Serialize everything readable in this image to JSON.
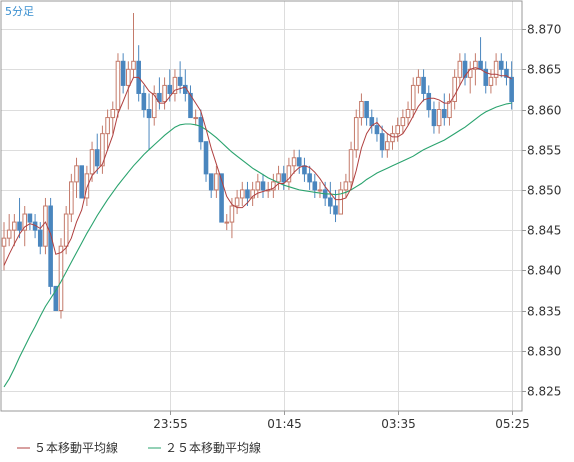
{
  "timeframe_label": "5分足",
  "colors": {
    "up": "#c47a6a",
    "down": "#4a86be",
    "ma5": "#b04040",
    "ma25": "#2aa36e",
    "grid": "#dddddd",
    "frame": "#999999",
    "tag": "#3a8fd0"
  },
  "legend": {
    "ma5": "５本移動平均線",
    "ma25": "２５本移動平均線"
  },
  "chart_data": {
    "type": "candlestick",
    "y_range": [
      8.8225,
      8.8735
    ],
    "y_ticks": [
      8.825,
      8.83,
      8.835,
      8.84,
      8.845,
      8.85,
      8.855,
      8.86,
      8.865,
      8.87
    ],
    "y_tick_labels": [
      "8.825",
      "8.830",
      "8.835",
      "8.840",
      "8.845",
      "8.850",
      "8.855",
      "8.860",
      "8.865",
      "8.870"
    ],
    "x_ticks": [
      {
        "label": "23:55",
        "index": 32
      },
      {
        "label": "01:45",
        "index": 54
      },
      {
        "label": "03:35",
        "index": 76
      },
      {
        "label": "05:25",
        "index": 98
      }
    ],
    "candles": [
      [
        8.843,
        8.846,
        8.84,
        8.844
      ],
      [
        8.844,
        8.847,
        8.843,
        8.845
      ],
      [
        8.845,
        8.847,
        8.843,
        8.846
      ],
      [
        8.846,
        8.849,
        8.844,
        8.845
      ],
      [
        8.845,
        8.848,
        8.843,
        8.847
      ],
      [
        8.847,
        8.847,
        8.845,
        8.846
      ],
      [
        8.846,
        8.847,
        8.844,
        8.845
      ],
      [
        8.845,
        8.846,
        8.842,
        8.843
      ],
      [
        8.843,
        8.849,
        8.842,
        8.848
      ],
      [
        8.848,
        8.849,
        8.837,
        8.838
      ],
      [
        8.838,
        8.838,
        8.835,
        8.835
      ],
      [
        8.835,
        8.844,
        8.834,
        8.843
      ],
      [
        8.843,
        8.848,
        8.842,
        8.847
      ],
      [
        8.847,
        8.852,
        8.846,
        8.851
      ],
      [
        8.851,
        8.854,
        8.849,
        8.853
      ],
      [
        8.853,
        8.853,
        8.849,
        8.849
      ],
      [
        8.849,
        8.853,
        8.848,
        8.852
      ],
      [
        8.852,
        8.856,
        8.851,
        8.855
      ],
      [
        8.855,
        8.857,
        8.852,
        8.853
      ],
      [
        8.853,
        8.858,
        8.852,
        8.857
      ],
      [
        8.857,
        8.86,
        8.855,
        8.859
      ],
      [
        8.859,
        8.861,
        8.857,
        8.86
      ],
      [
        8.86,
        8.867,
        8.859,
        8.866
      ],
      [
        8.866,
        8.867,
        8.862,
        8.863
      ],
      [
        8.863,
        8.866,
        8.86,
        8.865
      ],
      [
        8.865,
        8.872,
        8.864,
        8.866
      ],
      [
        8.866,
        8.868,
        8.861,
        8.862
      ],
      [
        8.862,
        8.863,
        8.859,
        8.86
      ],
      [
        8.86,
        8.862,
        8.855,
        8.859
      ],
      [
        8.859,
        8.863,
        8.858,
        8.862
      ],
      [
        8.862,
        8.864,
        8.86,
        8.861
      ],
      [
        8.861,
        8.864,
        8.86,
        8.863
      ],
      [
        8.863,
        8.865,
        8.861,
        8.862
      ],
      [
        8.862,
        8.865,
        8.861,
        8.864
      ],
      [
        8.864,
        8.866,
        8.862,
        8.863
      ],
      [
        8.863,
        8.865,
        8.861,
        8.862
      ],
      [
        8.862,
        8.863,
        8.859,
        8.859
      ],
      [
        8.859,
        8.86,
        8.858,
        8.859
      ],
      [
        8.859,
        8.86,
        8.855,
        8.856
      ],
      [
        8.856,
        8.856,
        8.851,
        8.852
      ],
      [
        8.852,
        8.852,
        8.849,
        8.85
      ],
      [
        8.85,
        8.853,
        8.849,
        8.852
      ],
      [
        8.852,
        8.852,
        8.846,
        8.846
      ],
      [
        8.846,
        8.847,
        8.845,
        8.846
      ],
      [
        8.846,
        8.849,
        8.844,
        8.848
      ],
      [
        8.848,
        8.85,
        8.847,
        8.849
      ],
      [
        8.849,
        8.851,
        8.848,
        8.85
      ],
      [
        8.85,
        8.851,
        8.848,
        8.849
      ],
      [
        8.849,
        8.851,
        8.848,
        8.85
      ],
      [
        8.85,
        8.852,
        8.849,
        8.851
      ],
      [
        8.851,
        8.852,
        8.849,
        8.85
      ],
      [
        8.85,
        8.851,
        8.849,
        8.85
      ],
      [
        8.85,
        8.852,
        8.849,
        8.851
      ],
      [
        8.851,
        8.853,
        8.85,
        8.852
      ],
      [
        8.852,
        8.853,
        8.85,
        8.851
      ],
      [
        8.851,
        8.854,
        8.85,
        8.853
      ],
      [
        8.853,
        8.855,
        8.852,
        8.854
      ],
      [
        8.854,
        8.855,
        8.852,
        8.853
      ],
      [
        8.853,
        8.854,
        8.851,
        8.852
      ],
      [
        8.852,
        8.853,
        8.85,
        8.851
      ],
      [
        8.851,
        8.852,
        8.849,
        8.85
      ],
      [
        8.85,
        8.851,
        8.849,
        8.85
      ],
      [
        8.85,
        8.851,
        8.848,
        8.849
      ],
      [
        8.849,
        8.851,
        8.847,
        8.848
      ],
      [
        8.848,
        8.85,
        8.846,
        8.847
      ],
      [
        8.847,
        8.851,
        8.847,
        8.85
      ],
      [
        8.85,
        8.852,
        8.849,
        8.851
      ],
      [
        8.851,
        8.856,
        8.85,
        8.855
      ],
      [
        8.855,
        8.86,
        8.854,
        8.859
      ],
      [
        8.859,
        8.862,
        8.858,
        8.861
      ],
      [
        8.861,
        8.861,
        8.858,
        8.859
      ],
      [
        8.859,
        8.86,
        8.857,
        8.858
      ],
      [
        8.858,
        8.859,
        8.856,
        8.857
      ],
      [
        8.857,
        8.858,
        8.854,
        8.855
      ],
      [
        8.855,
        8.857,
        8.854,
        8.856
      ],
      [
        8.856,
        8.858,
        8.855,
        8.857
      ],
      [
        8.857,
        8.859,
        8.856,
        8.858
      ],
      [
        8.858,
        8.86,
        8.857,
        8.859
      ],
      [
        8.859,
        8.861,
        8.858,
        8.86
      ],
      [
        8.86,
        8.864,
        8.859,
        8.863
      ],
      [
        8.863,
        8.865,
        8.862,
        8.864
      ],
      [
        8.864,
        8.865,
        8.861,
        8.862
      ],
      [
        8.862,
        8.863,
        8.859,
        8.86
      ],
      [
        8.86,
        8.861,
        8.857,
        8.858
      ],
      [
        8.858,
        8.861,
        8.857,
        8.86
      ],
      [
        8.86,
        8.862,
        8.858,
        8.859
      ],
      [
        8.859,
        8.862,
        8.858,
        8.861
      ],
      [
        8.861,
        8.865,
        8.86,
        8.864
      ],
      [
        8.864,
        8.867,
        8.863,
        8.866
      ],
      [
        8.866,
        8.867,
        8.863,
        8.864
      ],
      [
        8.864,
        8.866,
        8.862,
        8.865
      ],
      [
        8.865,
        8.867,
        8.863,
        8.866
      ],
      [
        8.866,
        8.869,
        8.865,
        8.865
      ],
      [
        8.865,
        8.866,
        8.862,
        8.863
      ],
      [
        8.863,
        8.865,
        8.862,
        8.864
      ],
      [
        8.864,
        8.867,
        8.863,
        8.866
      ],
      [
        8.866,
        8.867,
        8.864,
        8.865
      ],
      [
        8.865,
        8.866,
        8.863,
        8.864
      ],
      [
        8.864,
        8.866,
        8.86,
        8.861
      ]
    ],
    "ma5": [
      8.8406,
      8.842,
      8.8433,
      8.8445,
      8.8454,
      8.8458,
      8.8456,
      8.8452,
      8.846,
      8.8445,
      8.842,
      8.8422,
      8.8428,
      8.844,
      8.846,
      8.8475,
      8.8503,
      8.8518,
      8.8525,
      8.8532,
      8.855,
      8.8568,
      8.8595,
      8.861,
      8.8626,
      8.864,
      8.864,
      8.8632,
      8.8623,
      8.8618,
      8.8608,
      8.8608,
      8.8616,
      8.8624,
      8.8626,
      8.8628,
      8.8618,
      8.8608,
      8.8598,
      8.8576,
      8.8552,
      8.8532,
      8.8512,
      8.8492,
      8.8482,
      8.8478,
      8.8478,
      8.8484,
      8.8492,
      8.8496,
      8.8498,
      8.85,
      8.8502,
      8.8508,
      8.8508,
      8.8514,
      8.8522,
      8.8528,
      8.853,
      8.8528,
      8.8522,
      8.8514,
      8.8504,
      8.8496,
      8.8488,
      8.8488,
      8.849,
      8.8502,
      8.8524,
      8.8552,
      8.857,
      8.858,
      8.8584,
      8.8576,
      8.857,
      8.8566,
      8.8566,
      8.857,
      8.858,
      8.8592,
      8.8604,
      8.8612,
      8.8614,
      8.8614,
      8.8612,
      8.8608,
      8.8608,
      8.8618,
      8.863,
      8.8642,
      8.865,
      8.8652,
      8.865,
      8.8646,
      8.8644,
      8.8644,
      8.8642,
      8.8642,
      8.8638
    ],
    "ma25": [
      8.8255,
      8.8265,
      8.8278,
      8.8292,
      8.8305,
      8.8318,
      8.833,
      8.8343,
      8.8355,
      8.8365,
      8.8375,
      8.8386,
      8.8398,
      8.841,
      8.8422,
      8.8434,
      8.8446,
      8.8457,
      8.8468,
      8.8478,
      8.8488,
      8.8497,
      8.8506,
      8.8514,
      8.8522,
      8.853,
      8.8537,
      8.8544,
      8.855,
      8.8556,
      8.8562,
      8.8568,
      8.8573,
      8.8578,
      8.8581,
      8.8582,
      8.8582,
      8.8581,
      8.8579,
      8.8575,
      8.857,
      8.8565,
      8.8559,
      8.8553,
      8.8547,
      8.8542,
      8.8537,
      8.8532,
      8.8527,
      8.8523,
      8.8519,
      8.8515,
      8.8512,
      8.8509,
      8.8506,
      8.8504,
      8.8502,
      8.85,
      8.8499,
      8.8498,
      8.8497,
      8.8496,
      8.8495,
      8.8495,
      8.8494,
      8.8495,
      8.8497,
      8.85,
      8.8504,
      8.8508,
      8.8513,
      8.8517,
      8.8521,
      8.8524,
      8.8527,
      8.853,
      8.8533,
      8.8536,
      8.8539,
      8.8542,
      8.8546,
      8.855,
      8.8553,
      8.8556,
      8.8559,
      8.8562,
      8.8566,
      8.857,
      8.8574,
      8.8578,
      8.8583,
      8.8588,
      8.8593,
      8.8597,
      8.86,
      8.8603,
      8.8605,
      8.8607,
      8.8608
    ]
  }
}
